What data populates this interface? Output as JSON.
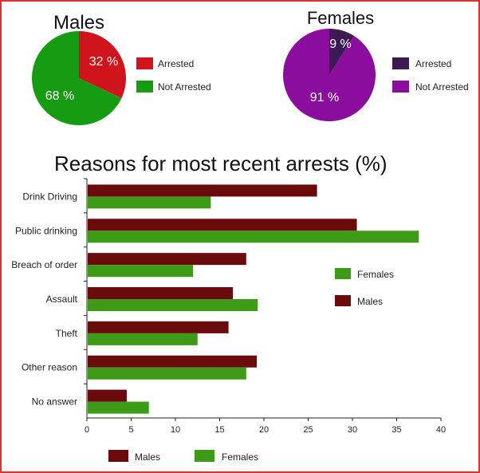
{
  "chart_data": [
    {
      "type": "pie",
      "title": "Males",
      "slices": [
        {
          "label": "Arrested",
          "value": 32,
          "display": "32 %",
          "color": "#d0141b"
        },
        {
          "label": "Not Arrested",
          "value": 68,
          "display": "68 %",
          "color": "#169c12"
        }
      ]
    },
    {
      "type": "pie",
      "title": "Females",
      "slices": [
        {
          "label": "Arrested",
          "value": 9,
          "display": "9 %",
          "color": "#3e1a55"
        },
        {
          "label": "Not Arrested",
          "value": 91,
          "display": "91 %",
          "color": "#8a0d9e"
        }
      ]
    },
    {
      "type": "bar",
      "orientation": "horizontal",
      "title": "Reasons for most recent arrests (%)",
      "categories": [
        "Drink Driving",
        "Public drinking",
        "Breach of order",
        "Assault",
        "Theft",
        "Other reason",
        "No answer"
      ],
      "series": [
        {
          "name": "Males",
          "color": "#6b0a0a",
          "values": [
            26,
            30.5,
            18,
            16.5,
            16,
            19.2,
            4.5
          ]
        },
        {
          "name": "Females",
          "color": "#3d9b18",
          "values": [
            14,
            37.5,
            12,
            19.3,
            12.5,
            18,
            7
          ]
        }
      ],
      "xlim": [
        0,
        40
      ],
      "xticks": [
        0,
        5,
        10,
        15,
        20,
        25,
        30,
        35,
        40
      ],
      "legend_inner": [
        "Females",
        "Males"
      ],
      "legend_bottom": [
        "Males",
        "Females"
      ]
    }
  ]
}
